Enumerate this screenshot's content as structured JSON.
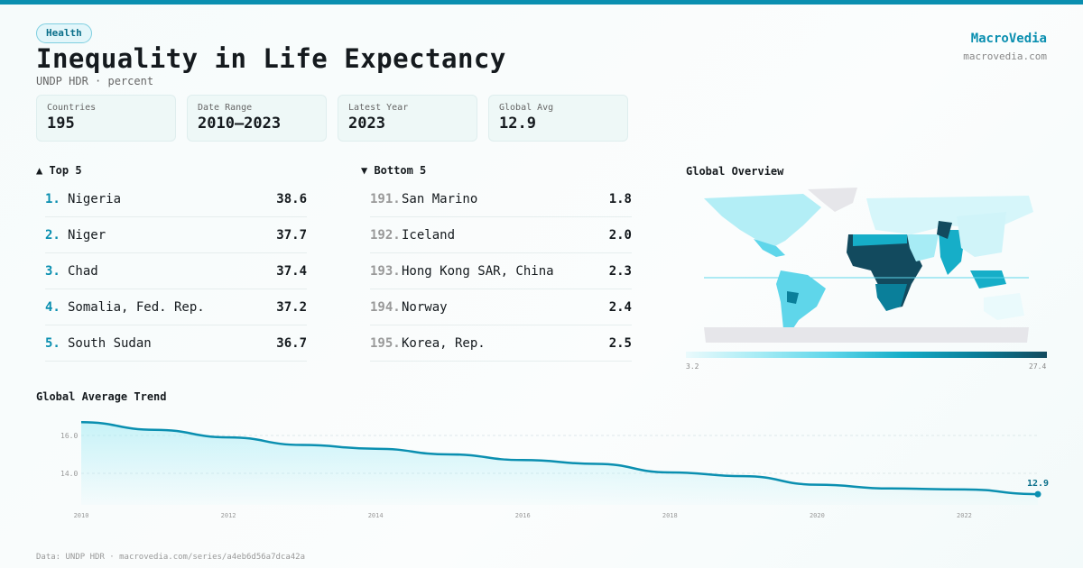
{
  "tag": "Health",
  "title": "Inequality in Life Expectancy",
  "subtitle": "UNDP HDR · percent",
  "brand": {
    "name": "MacroVedia",
    "url": "macrovedia.com"
  },
  "stats": [
    {
      "label": "Countries",
      "value": "195"
    },
    {
      "label": "Date Range",
      "value": "2010–2023"
    },
    {
      "label": "Latest Year",
      "value": "2023"
    },
    {
      "label": "Global Avg",
      "value": "12.9"
    }
  ],
  "top": {
    "heading": "▲ Top 5",
    "items": [
      {
        "rank": "1.",
        "name": "Nigeria",
        "value": "38.6"
      },
      {
        "rank": "2.",
        "name": "Niger",
        "value": "37.7"
      },
      {
        "rank": "3.",
        "name": "Chad",
        "value": "37.4"
      },
      {
        "rank": "4.",
        "name": "Somalia, Fed. Rep.",
        "value": "37.2"
      },
      {
        "rank": "5.",
        "name": "South Sudan",
        "value": "36.7"
      }
    ]
  },
  "bottom": {
    "heading": "▼ Bottom 5",
    "items": [
      {
        "rank": "191.",
        "name": "San Marino",
        "value": "1.8"
      },
      {
        "rank": "192.",
        "name": "Iceland",
        "value": "2.0"
      },
      {
        "rank": "193.",
        "name": "Hong Kong SAR, China",
        "value": "2.3"
      },
      {
        "rank": "194.",
        "name": "Norway",
        "value": "2.4"
      },
      {
        "rank": "195.",
        "name": "Korea, Rep.",
        "value": "2.5"
      }
    ]
  },
  "map": {
    "heading": "Global Overview",
    "legend_min": "3.2",
    "legend_max": "27.4",
    "colors": [
      "#eafafc",
      "#a7ecf5",
      "#5fd6ea",
      "#16aec8",
      "#0a7f9a",
      "#124a5e"
    ]
  },
  "chart_data": {
    "type": "area",
    "title": "Global Average Trend",
    "x": [
      2010,
      2011,
      2012,
      2013,
      2014,
      2015,
      2016,
      2017,
      2018,
      2019,
      2020,
      2021,
      2022,
      2023
    ],
    "values": [
      16.7,
      16.3,
      15.9,
      15.5,
      15.3,
      15.0,
      14.7,
      14.5,
      14.05,
      13.85,
      13.4,
      13.2,
      13.15,
      12.9
    ],
    "xticks": [
      "2010",
      "2012",
      "2014",
      "2016",
      "2018",
      "2020",
      "2022"
    ],
    "yticks": [
      "14.0",
      "16.0"
    ],
    "end_label": "12.9",
    "grid": true,
    "color": "#0a8fb0"
  },
  "footer": "Data: UNDP HDR · macrovedia.com/series/a4eb6d56a7dca42a"
}
